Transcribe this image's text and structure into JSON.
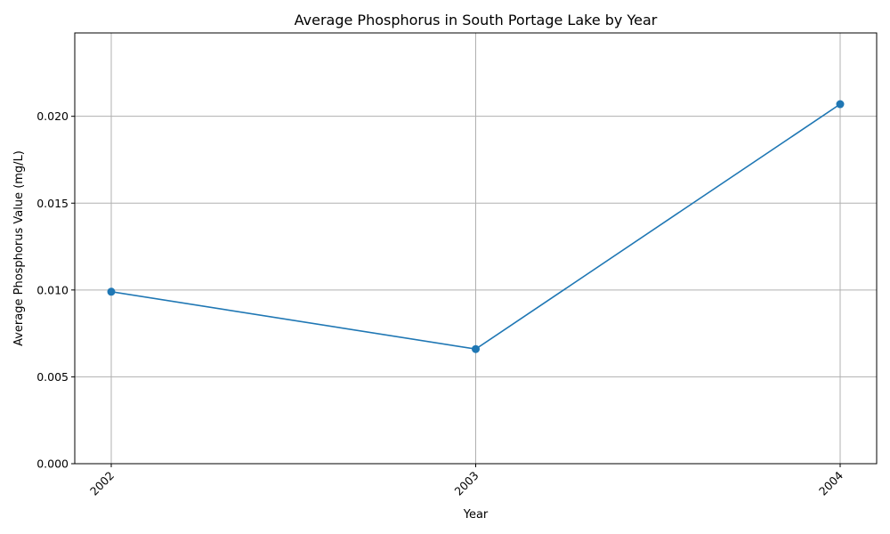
{
  "chart_data": {
    "type": "line",
    "title": "Average Phosphorus in South Portage Lake by Year",
    "xlabel": "Year",
    "ylabel": "Average Phosphorus Value (mg/L)",
    "categories": [
      "2002",
      "2003",
      "2004"
    ],
    "series": [
      {
        "values": [
          0.0099,
          0.0066,
          0.0207
        ],
        "color": "#1f77b4",
        "marker": "circle"
      }
    ],
    "ylim": [
      0,
      0.0248
    ],
    "yticks": [
      0.0,
      0.005,
      0.01,
      0.015,
      0.02
    ],
    "ytick_labels": [
      "0.000",
      "0.005",
      "0.010",
      "0.015",
      "0.020"
    ],
    "grid": true,
    "xtick_rotation": "45deg"
  }
}
